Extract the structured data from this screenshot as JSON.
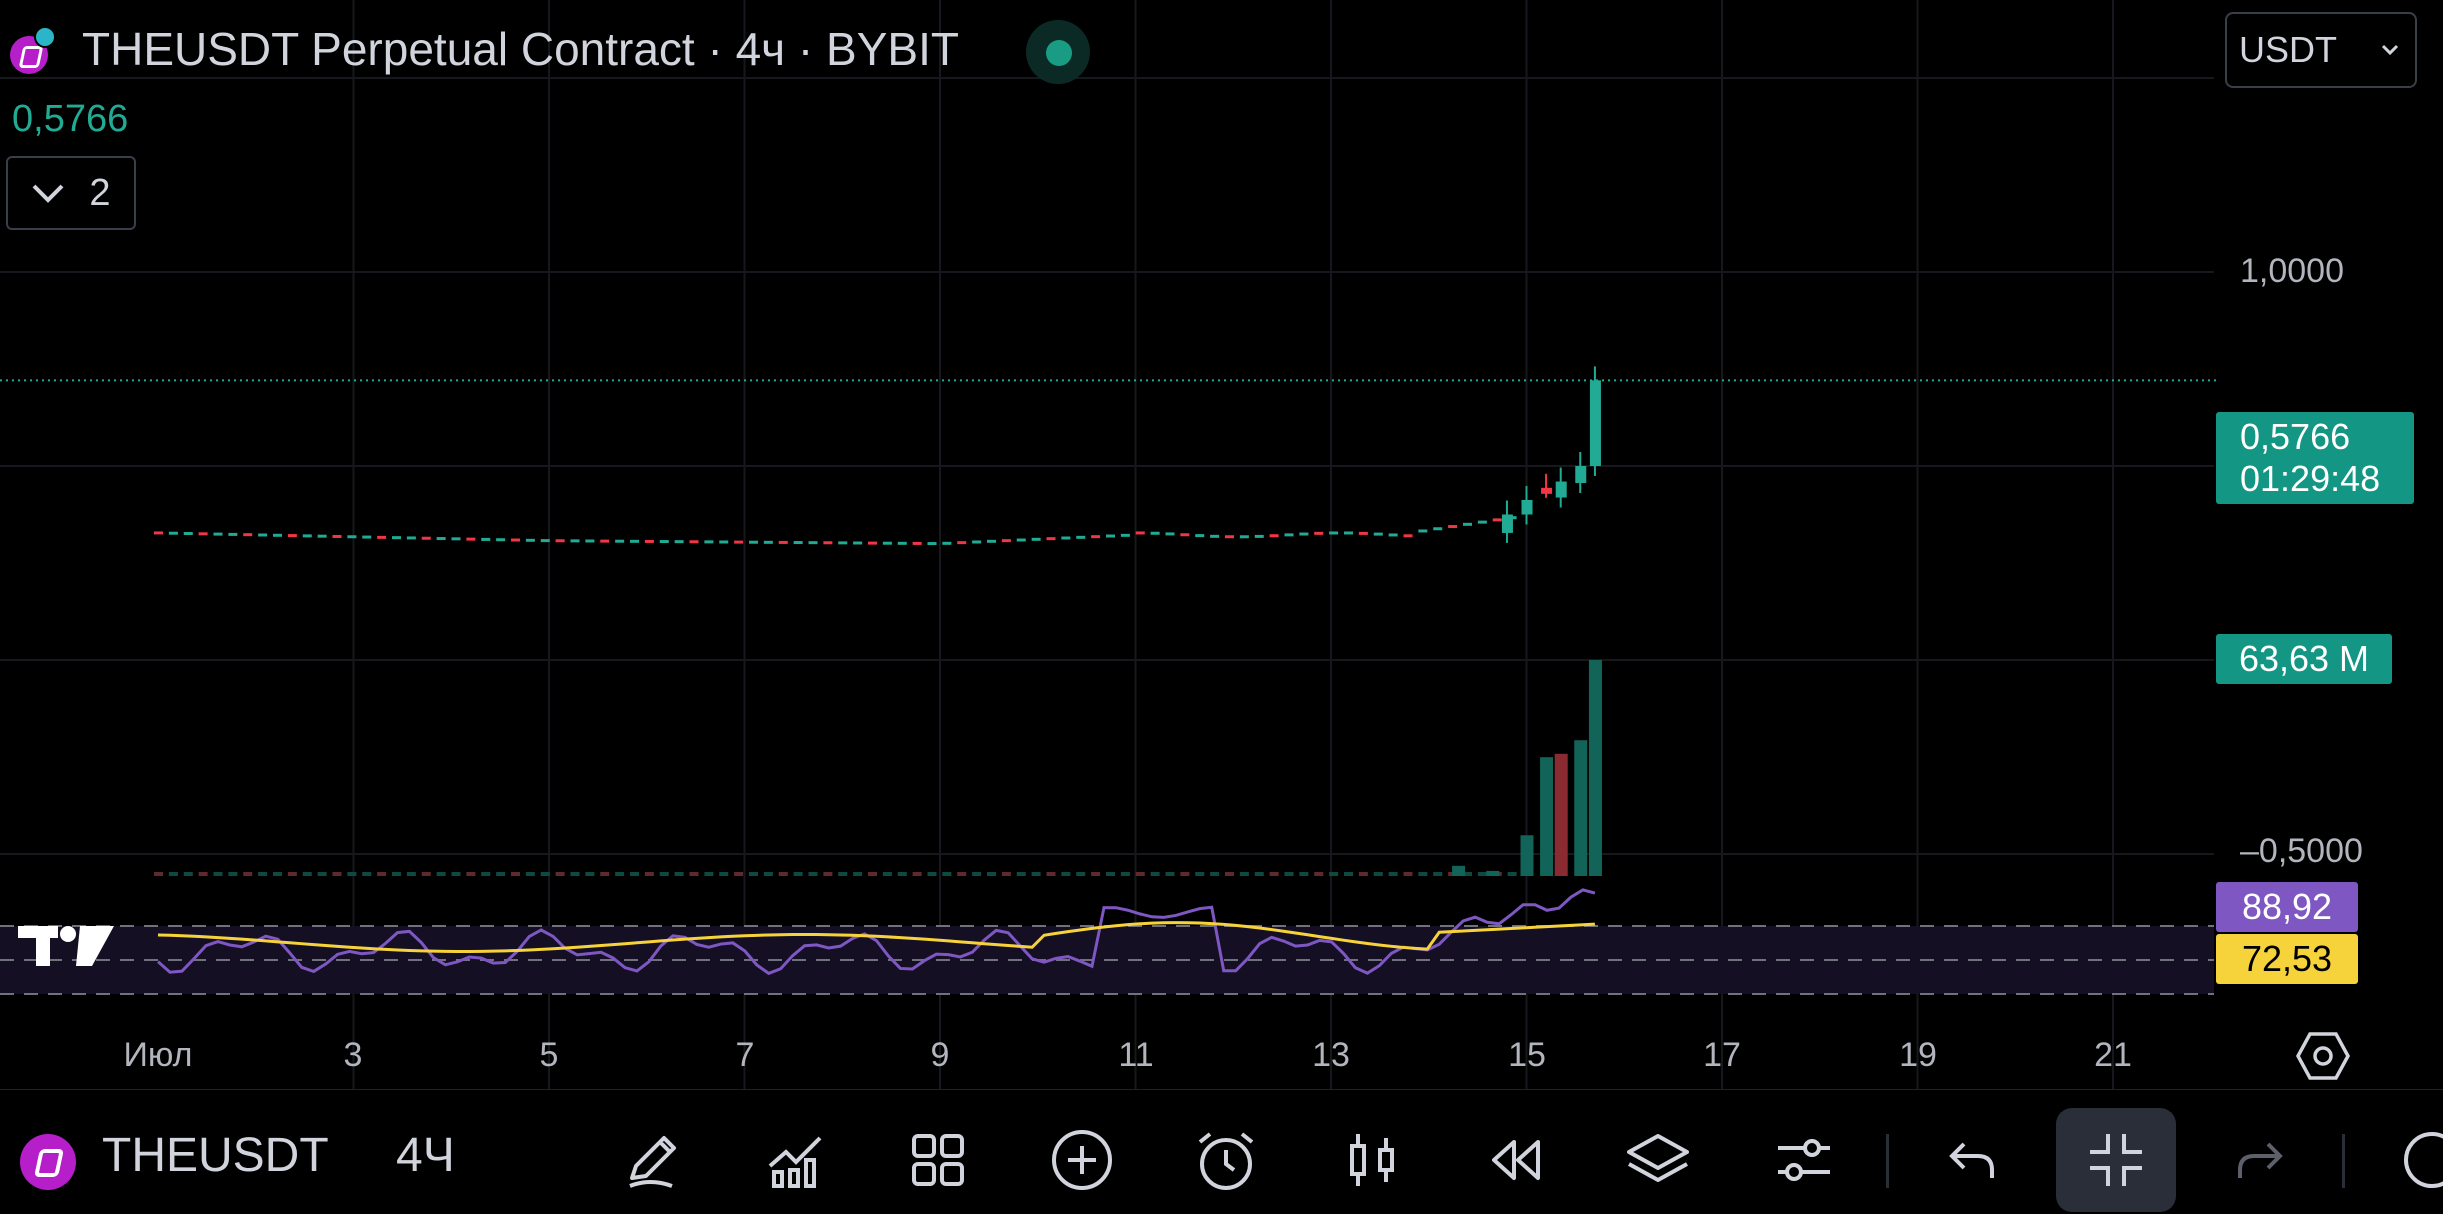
{
  "header": {
    "title": "THEUSDT Perpetual Contract · 4ч · BYBIT",
    "last_price": "0,5766",
    "collapsed_count": "2",
    "currency": "USDT"
  },
  "price_axis": {
    "labels": [
      "1,0000",
      "–0,5000"
    ],
    "current_price": "0,5766",
    "countdown": "01:29:48",
    "volume": "63,63 M",
    "rsi_value": "88,92",
    "rsi_ma_value": "72,53"
  },
  "time_axis": {
    "labels": [
      "Июл",
      "3",
      "5",
      "7",
      "9",
      "11",
      "13",
      "15",
      "17",
      "19",
      "21"
    ]
  },
  "colors": {
    "up": "#22ab94",
    "down": "#f23645",
    "rsi": "#7e57c2",
    "rsi_ma": "#f7d33b",
    "accent": "#139683"
  },
  "toolbar": {
    "symbol": "THEUSDT",
    "interval": "4Ч",
    "buttons": [
      {
        "name": "draw-icon"
      },
      {
        "name": "indicators-icon"
      },
      {
        "name": "layouts-icon"
      },
      {
        "name": "add-icon"
      },
      {
        "name": "alert-icon"
      },
      {
        "name": "chart-type-icon"
      },
      {
        "name": "replay-icon"
      },
      {
        "name": "layers-icon"
      },
      {
        "name": "settings-sliders-icon"
      },
      {
        "name": "undo-icon"
      },
      {
        "name": "fullscreen-exit-icon"
      },
      {
        "name": "redo-icon"
      }
    ]
  },
  "chart_data": {
    "type": "candlestick",
    "title": "THEUSDT Perpetual Contract · 4ч · BYBIT",
    "x_labels": [
      "Июл",
      "3",
      "5",
      "7",
      "9",
      "11",
      "13",
      "15",
      "17",
      "19",
      "21"
    ],
    "y_ticks": [
      "1,0000",
      "–0,5000"
    ],
    "last_price": 0.5766,
    "series": [
      {
        "name": "price_close",
        "x": [
          1,
          3,
          5,
          7,
          9,
          11,
          13,
          14,
          15,
          15.3,
          15.5,
          15.7
        ],
        "values": [
          0.26,
          0.25,
          0.245,
          0.24,
          0.24,
          0.26,
          0.27,
          0.28,
          0.3,
          0.36,
          0.4,
          0.5766
        ]
      },
      {
        "name": "volume_M",
        "x": [
          1,
          9,
          11,
          13,
          14,
          14.8,
          15,
          15.2,
          15.4,
          15.6,
          15.7
        ],
        "values": [
          0.5,
          0.5,
          1.0,
          1.5,
          3.0,
          5.0,
          14,
          36,
          38,
          40,
          63.63
        ]
      },
      {
        "name": "RSI",
        "last": 88.92
      },
      {
        "name": "RSI MA",
        "last": 72.53
      }
    ],
    "grid": true
  }
}
